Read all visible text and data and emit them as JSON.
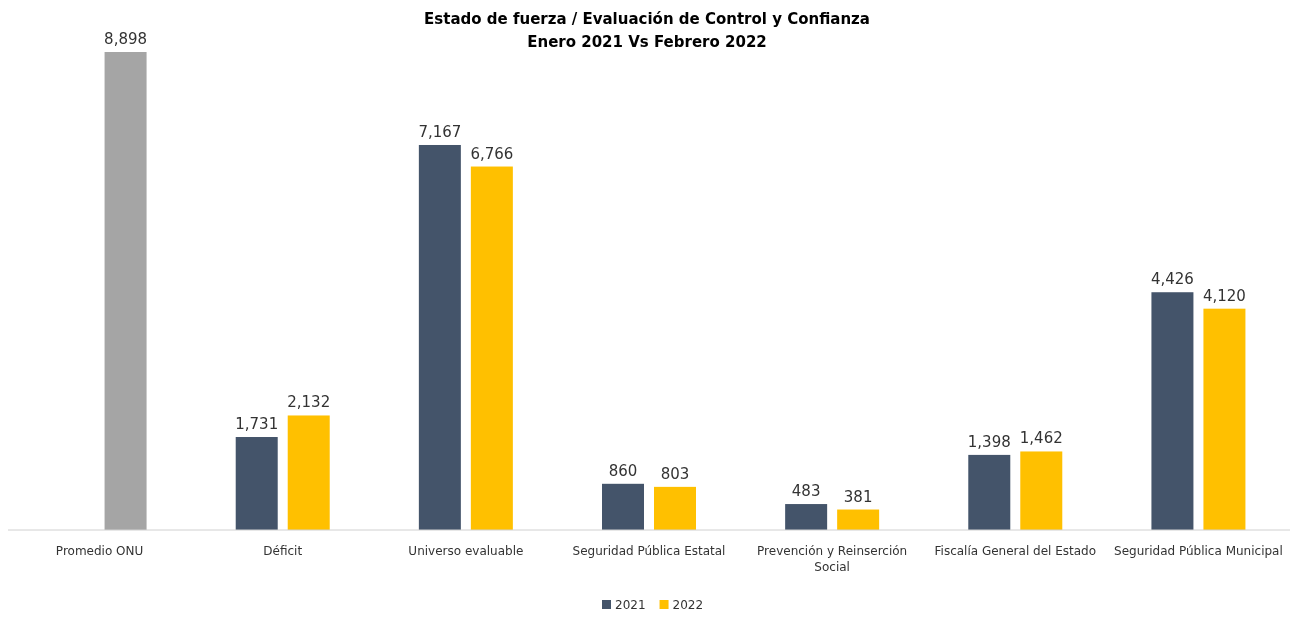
{
  "chart_data": {
    "type": "bar",
    "title": "Estado de fuerza / Evaluación de Control y Confianza",
    "subtitle": "Enero 2021  Vs Febrero 2022",
    "categories": [
      "Promedio ONU",
      "Déficit",
      "Universo evaluable",
      "Seguridad Pública Estatal",
      "Prevención y Reinserción Social",
      "Fiscalía General del Estado",
      "Seguridad Pública Municipal"
    ],
    "series": [
      {
        "name": "2021",
        "color": "#44546a",
        "values": [
          null,
          1731,
          7167,
          860,
          483,
          1398,
          4426
        ],
        "value_labels": [
          null,
          "1,731",
          "7,167",
          "860",
          "483",
          "1,398",
          "4,426"
        ]
      },
      {
        "name": "2022",
        "color": "#ffc000",
        "colors": [
          "#a5a5a5",
          "#ffc000",
          "#ffc000",
          "#ffc000",
          "#ffc000",
          "#ffc000",
          "#ffc000"
        ],
        "values": [
          8898,
          2132,
          6766,
          803,
          381,
          1462,
          4120
        ],
        "value_labels": [
          "8,898",
          "2,132",
          "6,766",
          "803",
          "381",
          "1,462",
          "4,120"
        ]
      }
    ],
    "legend": "bottom"
  }
}
